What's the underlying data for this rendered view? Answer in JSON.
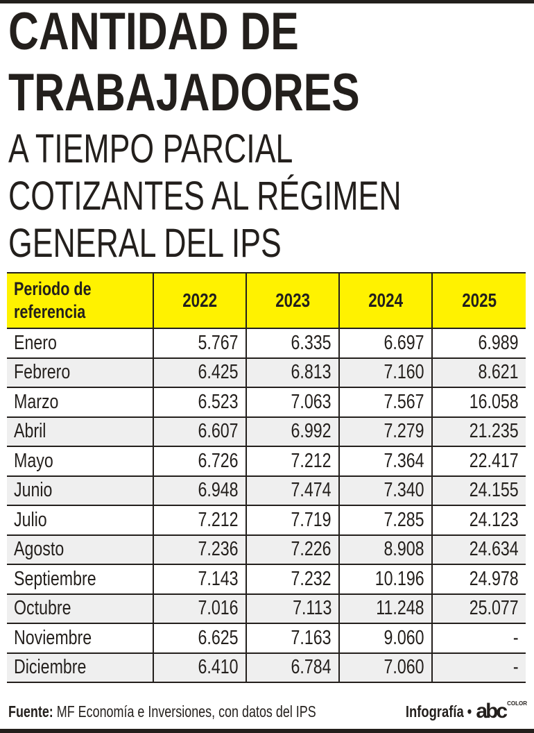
{
  "title": {
    "line1": "CANTIDAD DE",
    "line2": "TRABAJADORES",
    "line3": "A TIEMPO PARCIAL",
    "line4": "COTIZANTES AL RÉGIMEN",
    "line5": "GENERAL DEL IPS"
  },
  "colors": {
    "header_bg": "#fff200",
    "text": "#231f1c",
    "alt_row": "#efefef"
  },
  "chart_data": {
    "type": "table",
    "columns": [
      "Periodo de referencia",
      "2022",
      "2023",
      "2024",
      "2025"
    ],
    "header_first": [
      "Periodo de",
      "referencia"
    ],
    "rows": [
      [
        "Enero",
        "5.767",
        "6.335",
        "6.697",
        "6.989"
      ],
      [
        "Febrero",
        "6.425",
        "6.813",
        "7.160",
        "8.621"
      ],
      [
        "Marzo",
        "6.523",
        "7.063",
        "7.567",
        "16.058"
      ],
      [
        "Abril",
        "6.607",
        "6.992",
        "7.279",
        "21.235"
      ],
      [
        "Mayo",
        "6.726",
        "7.212",
        "7.364",
        "22.417"
      ],
      [
        "Junio",
        "6.948",
        "7.474",
        "7.340",
        "24.155"
      ],
      [
        "Julio",
        "7.212",
        "7.719",
        "7.285",
        "24.123"
      ],
      [
        "Agosto",
        "7.236",
        "7.226",
        "8.908",
        "24.634"
      ],
      [
        "Septiembre",
        "7.143",
        "7.232",
        "10.196",
        "24.978"
      ],
      [
        "Octubre",
        "7.016",
        "7.113",
        "11.248",
        "25.077"
      ],
      [
        "Noviembre",
        "6.625",
        "7.163",
        "9.060",
        "-"
      ],
      [
        "Diciembre",
        "6.410",
        "6.784",
        "7.060",
        "-"
      ]
    ]
  },
  "footer": {
    "source_label": "Fuente:",
    "source_text": " MF Economía e Inversiones, con datos del IPS",
    "credit": "Infografía •",
    "logo": "abc",
    "logo_sub": "COLOR"
  }
}
